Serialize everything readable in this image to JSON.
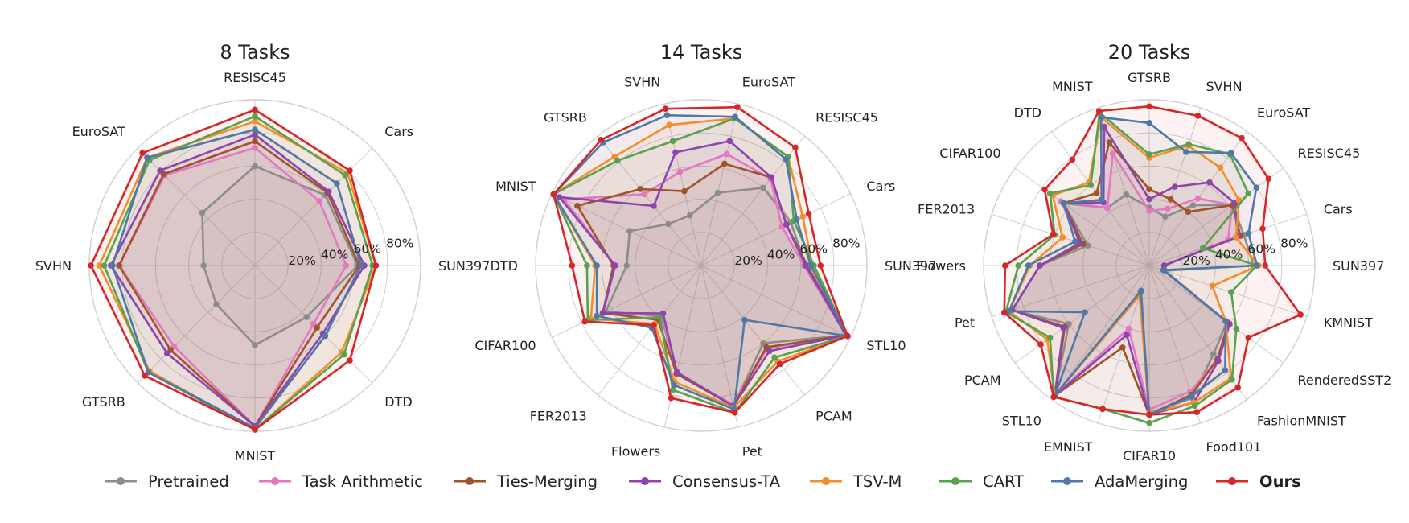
{
  "chart_data": [
    {
      "type": "radar",
      "title": "8 Tasks",
      "categories": [
        "SUN397",
        "Cars",
        "RESISC45",
        "EuroSAT",
        "SVHN",
        "GTSRB",
        "MNIST",
        "DTD"
      ],
      "rlim": [
        0,
        100
      ],
      "rticks": [
        20,
        40,
        60,
        80,
        100
      ],
      "rtick_labels": [
        "20%",
        "40%",
        "60%",
        "80%",
        ""
      ],
      "grid": true,
      "series": [
        {
          "name": "Pretrained",
          "values": [
            62,
            60,
            60,
            45,
            31,
            33,
            48,
            44
          ]
        },
        {
          "name": "Task Arithmetic",
          "values": [
            55,
            55,
            71,
            77,
            82,
            69,
            97,
            50
          ]
        },
        {
          "name": "Ties-Merging",
          "values": [
            63,
            62,
            75,
            78,
            82,
            72,
            97,
            53
          ]
        },
        {
          "name": "Consensus-TA",
          "values": [
            66,
            63,
            79,
            81,
            87,
            75,
            97,
            58
          ]
        },
        {
          "name": "TSV-M",
          "values": [
            73,
            79,
            87,
            92,
            94,
            90,
            99,
            74
          ]
        },
        {
          "name": "CART",
          "values": [
            71,
            77,
            90,
            90,
            91,
            91,
            99,
            76
          ]
        },
        {
          "name": "AdaMerging",
          "values": [
            64,
            70,
            82,
            92,
            86,
            91,
            98,
            60
          ]
        },
        {
          "name": "Ours",
          "values": [
            73,
            81,
            94,
            96,
            99,
            94,
            99,
            81
          ]
        }
      ]
    },
    {
      "type": "radar",
      "title": "14 Tasks",
      "categories": [
        "SUN397",
        "Cars",
        "RESISC45",
        "EuroSAT",
        "SVHN",
        "GTSRB",
        "MNIST",
        "DTD",
        "CIFAR100",
        "FER2013",
        "Flowers",
        "Pet",
        "PCAM",
        "STL10"
      ],
      "rlim": [
        0,
        100
      ],
      "rticks": [
        20,
        40,
        60,
        80,
        100
      ],
      "rtick_labels": [
        "20%",
        "40%",
        "60%",
        "80%",
        ""
      ],
      "grid": true,
      "series": [
        {
          "name": "Pretrained",
          "values": [
            63,
            60,
            60,
            45,
            31,
            32,
            48,
            45,
            64,
            39,
            66,
            87,
            60,
            97
          ]
        },
        {
          "name": "Task Arithmetic",
          "values": [
            62,
            54,
            67,
            69,
            58,
            55,
            92,
            52,
            66,
            38,
            67,
            86,
            64,
            97
          ]
        },
        {
          "name": "Ties-Merging",
          "values": [
            64,
            57,
            68,
            63,
            46,
            59,
            83,
            53,
            66,
            42,
            67,
            87,
            63,
            97
          ]
        },
        {
          "name": "Consensus-TA",
          "values": [
            63,
            57,
            68,
            77,
            70,
            46,
            95,
            52,
            66,
            37,
            66,
            87,
            66,
            97
          ]
        },
        {
          "name": "TSV-M",
          "values": [
            67,
            68,
            84,
            91,
            87,
            84,
            99,
            64,
            74,
            45,
            72,
            88,
            74,
            98
          ]
        },
        {
          "name": "CART",
          "values": [
            68,
            62,
            84,
            91,
            77,
            81,
            99,
            69,
            76,
            40,
            77,
            91,
            71,
            98
          ]
        },
        {
          "name": "AdaMerging",
          "values": [
            66,
            64,
            82,
            92,
            93,
            95,
            99,
            63,
            70,
            48,
            74,
            89,
            42,
            98
          ]
        },
        {
          "name": "Ours",
          "values": [
            72,
            72,
            91,
            98,
            97,
            97,
            99,
            78,
            78,
            46,
            82,
            91,
            76,
            98
          ]
        }
      ]
    },
    {
      "type": "radar",
      "title": "20 Tasks",
      "categories": [
        "SUN397",
        "Cars",
        "RESISC45",
        "EuroSAT",
        "SVHN",
        "GTSRB",
        "MNIST",
        "DTD",
        "CIFAR100",
        "FER2013",
        "Flowers",
        "Pet",
        "PCAM",
        "STL10",
        "EMNIST",
        "CIFAR10",
        "Food101",
        "FashionMNIST",
        "RenderedSST2",
        "KMNIST"
      ],
      "rlim": [
        0,
        100
      ],
      "rticks": [
        20,
        40,
        60,
        80,
        100
      ],
      "rtick_labels": [
        "20%",
        "40%",
        "60%",
        "80%",
        ""
      ],
      "grid": true,
      "series": [
        {
          "name": "Pretrained",
          "values": [
            63,
            60,
            62,
            45,
            31,
            35,
            45,
            43,
            64,
            39,
            66,
            87,
            60,
            97,
            17,
            89,
            84,
            66,
            58,
            10
          ]
        },
        {
          "name": "Task Arithmetic",
          "values": [
            9,
            50,
            62,
            50,
            36,
            33,
            71,
            43,
            66,
            43,
            66,
            87,
            64,
            97,
            40,
            87,
            80,
            70,
            59,
            9
          ]
        },
        {
          "name": "Ties-Merging",
          "values": [
            9,
            58,
            62,
            40,
            42,
            46,
            78,
            54,
            64,
            42,
            66,
            87,
            63,
            97,
            52,
            90,
            82,
            70,
            59,
            9
          ]
        },
        {
          "name": "Consensus-TA",
          "values": [
            9,
            56,
            64,
            62,
            50,
            40,
            88,
            47,
            64,
            44,
            66,
            87,
            64,
            97,
            44,
            90,
            87,
            71,
            60,
            9
          ]
        },
        {
          "name": "TSV-M",
          "values": [
            66,
            55,
            67,
            73,
            76,
            65,
            94,
            62,
            72,
            55,
            72,
            89,
            76,
            97,
            19,
            89,
            87,
            84,
            57,
            40
          ]
        },
        {
          "name": "CART",
          "values": [
            65,
            34,
            74,
            83,
            77,
            67,
            97,
            60,
            74,
            60,
            79,
            91,
            74,
            98,
            91,
            95,
            89,
            85,
            65,
            52
          ]
        },
        {
          "name": "AdaMerging",
          "values": [
            65,
            63,
            80,
            84,
            72,
            86,
            94,
            49,
            64,
            47,
            73,
            89,
            48,
            97,
            16,
            90,
            83,
            78,
            57,
            9
          ]
        },
        {
          "name": "Ours",
          "values": [
            70,
            72,
            89,
            95,
            95,
            96,
            98,
            79,
            78,
            61,
            87,
            92,
            81,
            98,
            91,
            90,
            93,
            91,
            74,
            96
          ]
        }
      ]
    }
  ],
  "legend": {
    "items": [
      {
        "name": "Pretrained",
        "color": "#8c8c8c",
        "bold": false
      },
      {
        "name": "Task Arithmetic",
        "color": "#e377c2",
        "bold": false
      },
      {
        "name": "Ties-Merging",
        "color": "#a0522d",
        "bold": false
      },
      {
        "name": "Consensus-TA",
        "color": "#8e44ad",
        "bold": false
      },
      {
        "name": "TSV-M",
        "color": "#f28e2b",
        "bold": false
      },
      {
        "name": "CART",
        "color": "#59a14f",
        "bold": false
      },
      {
        "name": "AdaMerging",
        "color": "#4e79a7",
        "bold": false
      },
      {
        "name": "Ours",
        "color": "#d62728",
        "bold": true
      }
    ]
  }
}
